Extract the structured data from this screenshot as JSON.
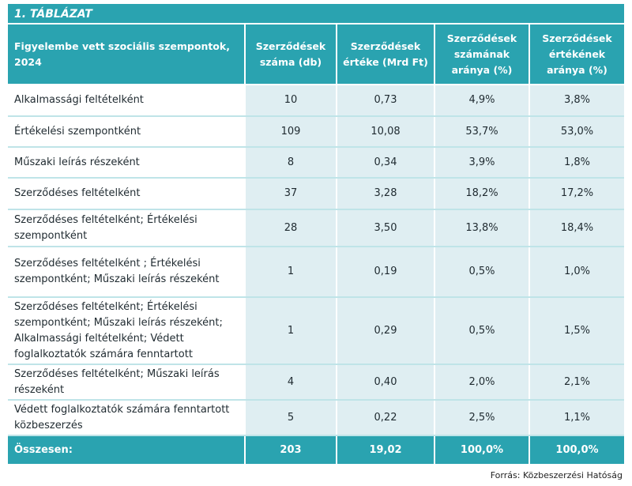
{
  "title": "1. TÁBLÁZAT",
  "headers": [
    "Figyelembe vett szociális szempontok, 2024",
    "Szerződések száma (db)",
    "Szerződések értéke (Mrd Ft)",
    "Szerződések számának aránya (%)",
    "Szerződések értékének aránya (%)"
  ],
  "rows": [
    {
      "label": "Alkalmassági feltételként",
      "count": "10",
      "value": "0,73",
      "count_share": "4,9%",
      "value_share": "3,8%"
    },
    {
      "label": "Értékelési szempontként",
      "count": "109",
      "value": "10,08",
      "count_share": "53,7%",
      "value_share": "53,0%"
    },
    {
      "label": "Műszaki leírás részeként",
      "count": "8",
      "value": "0,34",
      "count_share": "3,9%",
      "value_share": "1,8%"
    },
    {
      "label": "Szerződéses feltételként",
      "count": "37",
      "value": "3,28",
      "count_share": "18,2%",
      "value_share": "17,2%"
    },
    {
      "label": "Szerződéses feltételként; Értékelési szempontként",
      "count": "28",
      "value": "3,50",
      "count_share": "13,8%",
      "value_share": "18,4%"
    },
    {
      "label": "Szerződéses feltételként ; Értékelési szempontként; Műszaki leírás részeként",
      "count": "1",
      "value": "0,19",
      "count_share": "0,5%",
      "value_share": "1,0%"
    },
    {
      "label": "Szerződéses feltételként; Értékelési szempontként; Műszaki leírás részeként; Alkalmassági feltételként; Védett foglalkoztatók számára fenntartott",
      "count": "1",
      "value": "0,29",
      "count_share": "0,5%",
      "value_share": "1,5%"
    },
    {
      "label": "Szerződéses feltételként; Műszaki leírás részeként",
      "count": "4",
      "value": "0,40",
      "count_share": "2,0%",
      "value_share": "2,1%"
    },
    {
      "label": "Védett foglalkoztatók számára fenntartott közbeszerzés",
      "count": "5",
      "value": "0,22",
      "count_share": "2,5%",
      "value_share": "1,1%"
    }
  ],
  "total": {
    "label": "Összesen:",
    "count": "203",
    "value": "19,02",
    "count_share": "100,0%",
    "value_share": "100,0%"
  },
  "source": "Forrás: Közbeszerzési Hatóság"
}
